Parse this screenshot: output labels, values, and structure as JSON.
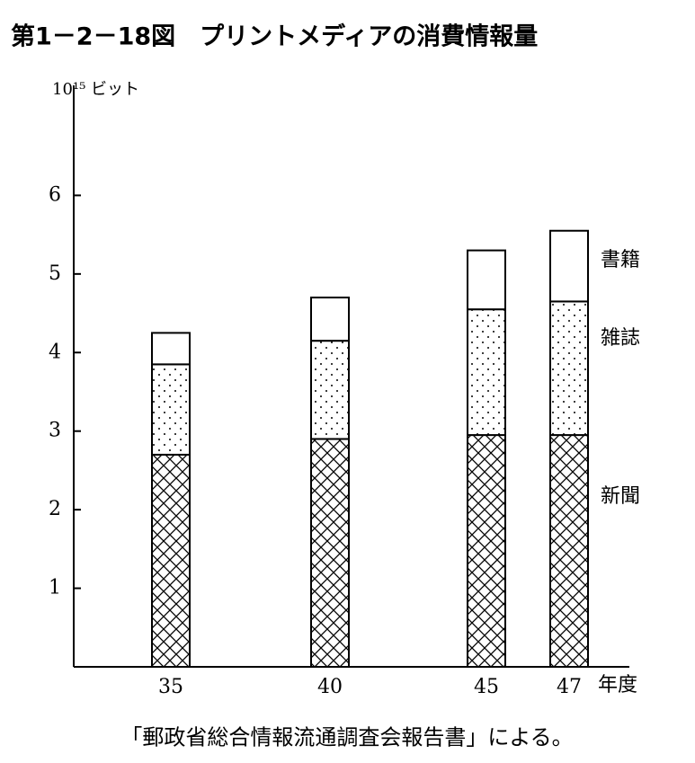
{
  "chart_data": {
    "type": "stacked_bar",
    "title": "第1－2－18図　プリントメディアの消費情報量",
    "y_label": "10¹⁵ ビット",
    "x_label": "年度",
    "source": "「郵政省総合情報流通調査会報告書」による。",
    "categories": [
      "35",
      "40",
      "45",
      "47"
    ],
    "series": [
      {
        "name": "新聞",
        "pattern": "crosshatch",
        "values": [
          2.7,
          2.9,
          2.95,
          2.95
        ]
      },
      {
        "name": "雑誌",
        "pattern": "dots",
        "values": [
          1.15,
          1.25,
          1.6,
          1.7
        ]
      },
      {
        "name": "書籍",
        "pattern": "none",
        "values": [
          0.4,
          0.55,
          0.75,
          0.9
        ]
      }
    ],
    "ylim": [
      0,
      7.4
    ],
    "yticks": [
      1,
      2,
      3,
      4,
      5,
      6
    ]
  }
}
